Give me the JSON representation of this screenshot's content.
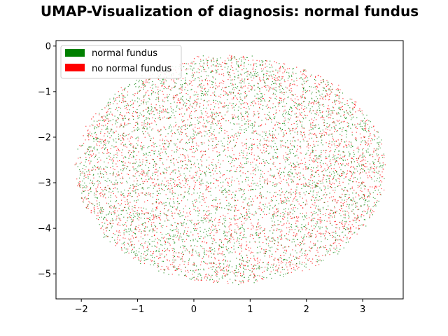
{
  "chart_data": {
    "type": "scatter",
    "title": "UMAP-Visualization of diagnosis: normal fundus",
    "xlabel": "",
    "ylabel": "",
    "xlim": [
      -2.45,
      3.72
    ],
    "ylim": [
      -5.55,
      0.12
    ],
    "xticks": [
      -2,
      -1,
      0,
      1,
      2,
      3
    ],
    "yticks": [
      0,
      -1,
      -2,
      -3,
      -4,
      -5
    ],
    "xtick_labels": [
      "−2",
      "−1",
      "0",
      "1",
      "2",
      "3"
    ],
    "ytick_labels": [
      "0",
      "−1",
      "−2",
      "−3",
      "−4",
      "−5"
    ],
    "grid": false,
    "legend_position": "upper-left",
    "point_cloud": {
      "shape": "ellipse",
      "center": [
        0.65,
        -2.7
      ],
      "radius_x": 2.75,
      "radius_y": 2.5,
      "points_per_series": 3500
    },
    "series": [
      {
        "name": "normal fundus",
        "color": "#008000"
      },
      {
        "name": "no normal fundus",
        "color": "#ff0000"
      }
    ]
  }
}
